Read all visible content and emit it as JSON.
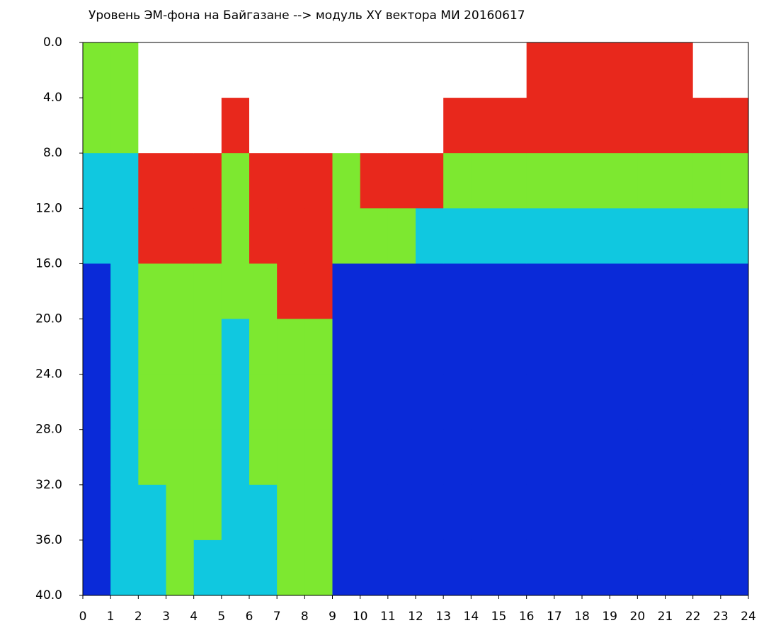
{
  "chart_data": {
    "type": "heatmap",
    "title": "Уровень ЭМ-фона на Байгазане  --> модуль XY вектора МИ  20160617",
    "xlim": [
      0,
      24
    ],
    "ylim": [
      0,
      40
    ],
    "y_reversed": true,
    "xticks": [
      0,
      1,
      2,
      3,
      4,
      5,
      6,
      7,
      8,
      9,
      10,
      11,
      12,
      13,
      14,
      15,
      16,
      17,
      18,
      19,
      20,
      21,
      22,
      23,
      24
    ],
    "yticks": [
      {
        "value": 0,
        "label": "0.0"
      },
      {
        "value": 4,
        "label": "4.0"
      },
      {
        "value": 8,
        "label": "8.0"
      },
      {
        "value": 12,
        "label": "12.0"
      },
      {
        "value": 16,
        "label": "16.0"
      },
      {
        "value": 20,
        "label": "20.0"
      },
      {
        "value": 24,
        "label": "24.0"
      },
      {
        "value": 28,
        "label": "28.0"
      },
      {
        "value": 32,
        "label": "32.0"
      },
      {
        "value": 36,
        "label": "36.0"
      },
      {
        "value": 40,
        "label": "40.0"
      }
    ],
    "x_bins": [
      0,
      1,
      2,
      3,
      4,
      5,
      6,
      7,
      8,
      9,
      10,
      11,
      12,
      13,
      14,
      15,
      16,
      17,
      18,
      19,
      20,
      21,
      22,
      23,
      24
    ],
    "y_bins": [
      0,
      4,
      8,
      12,
      16,
      20,
      24,
      28,
      32,
      36,
      40
    ],
    "colors": [
      "#ffffff",
      "#0a2ad8",
      "#10c8e0",
      "#7de830",
      "#e8281c"
    ],
    "values": [
      [
        3,
        3,
        2,
        2,
        1,
        1,
        1,
        1,
        1,
        1
      ],
      [
        3,
        3,
        2,
        2,
        2,
        2,
        2,
        2,
        2,
        2
      ],
      [
        0,
        0,
        4,
        4,
        3,
        3,
        3,
        3,
        2,
        2
      ],
      [
        0,
        0,
        4,
        4,
        3,
        3,
        3,
        3,
        3,
        3
      ],
      [
        0,
        0,
        4,
        4,
        3,
        3,
        3,
        3,
        3,
        2
      ],
      [
        0,
        4,
        3,
        3,
        3,
        2,
        2,
        2,
        2,
        2
      ],
      [
        0,
        0,
        4,
        4,
        3,
        3,
        3,
        3,
        2,
        2
      ],
      [
        0,
        0,
        4,
        4,
        4,
        3,
        3,
        3,
        3,
        3
      ],
      [
        0,
        0,
        4,
        4,
        4,
        3,
        3,
        3,
        3,
        3
      ],
      [
        0,
        0,
        3,
        3,
        1,
        1,
        1,
        1,
        1,
        1
      ],
      [
        0,
        0,
        4,
        3,
        1,
        1,
        1,
        1,
        1,
        1
      ],
      [
        0,
        0,
        4,
        3,
        1,
        1,
        1,
        1,
        1,
        1
      ],
      [
        0,
        0,
        4,
        2,
        1,
        1,
        1,
        1,
        1,
        1
      ],
      [
        0,
        4,
        3,
        2,
        1,
        1,
        1,
        1,
        1,
        1
      ],
      [
        0,
        4,
        3,
        2,
        1,
        1,
        1,
        1,
        1,
        1
      ],
      [
        0,
        4,
        3,
        2,
        1,
        1,
        1,
        1,
        1,
        1
      ],
      [
        4,
        4,
        3,
        2,
        1,
        1,
        1,
        1,
        1,
        1
      ],
      [
        4,
        4,
        3,
        2,
        1,
        1,
        1,
        1,
        1,
        1
      ],
      [
        4,
        4,
        3,
        2,
        1,
        1,
        1,
        1,
        1,
        1
      ],
      [
        4,
        4,
        3,
        2,
        1,
        1,
        1,
        1,
        1,
        1
      ],
      [
        4,
        4,
        3,
        2,
        1,
        1,
        1,
        1,
        1,
        1
      ],
      [
        4,
        4,
        3,
        2,
        1,
        1,
        1,
        1,
        1,
        1
      ],
      [
        0,
        4,
        3,
        2,
        1,
        1,
        1,
        1,
        1,
        1
      ],
      [
        0,
        4,
        3,
        2,
        1,
        1,
        1,
        1,
        1,
        1
      ]
    ]
  }
}
